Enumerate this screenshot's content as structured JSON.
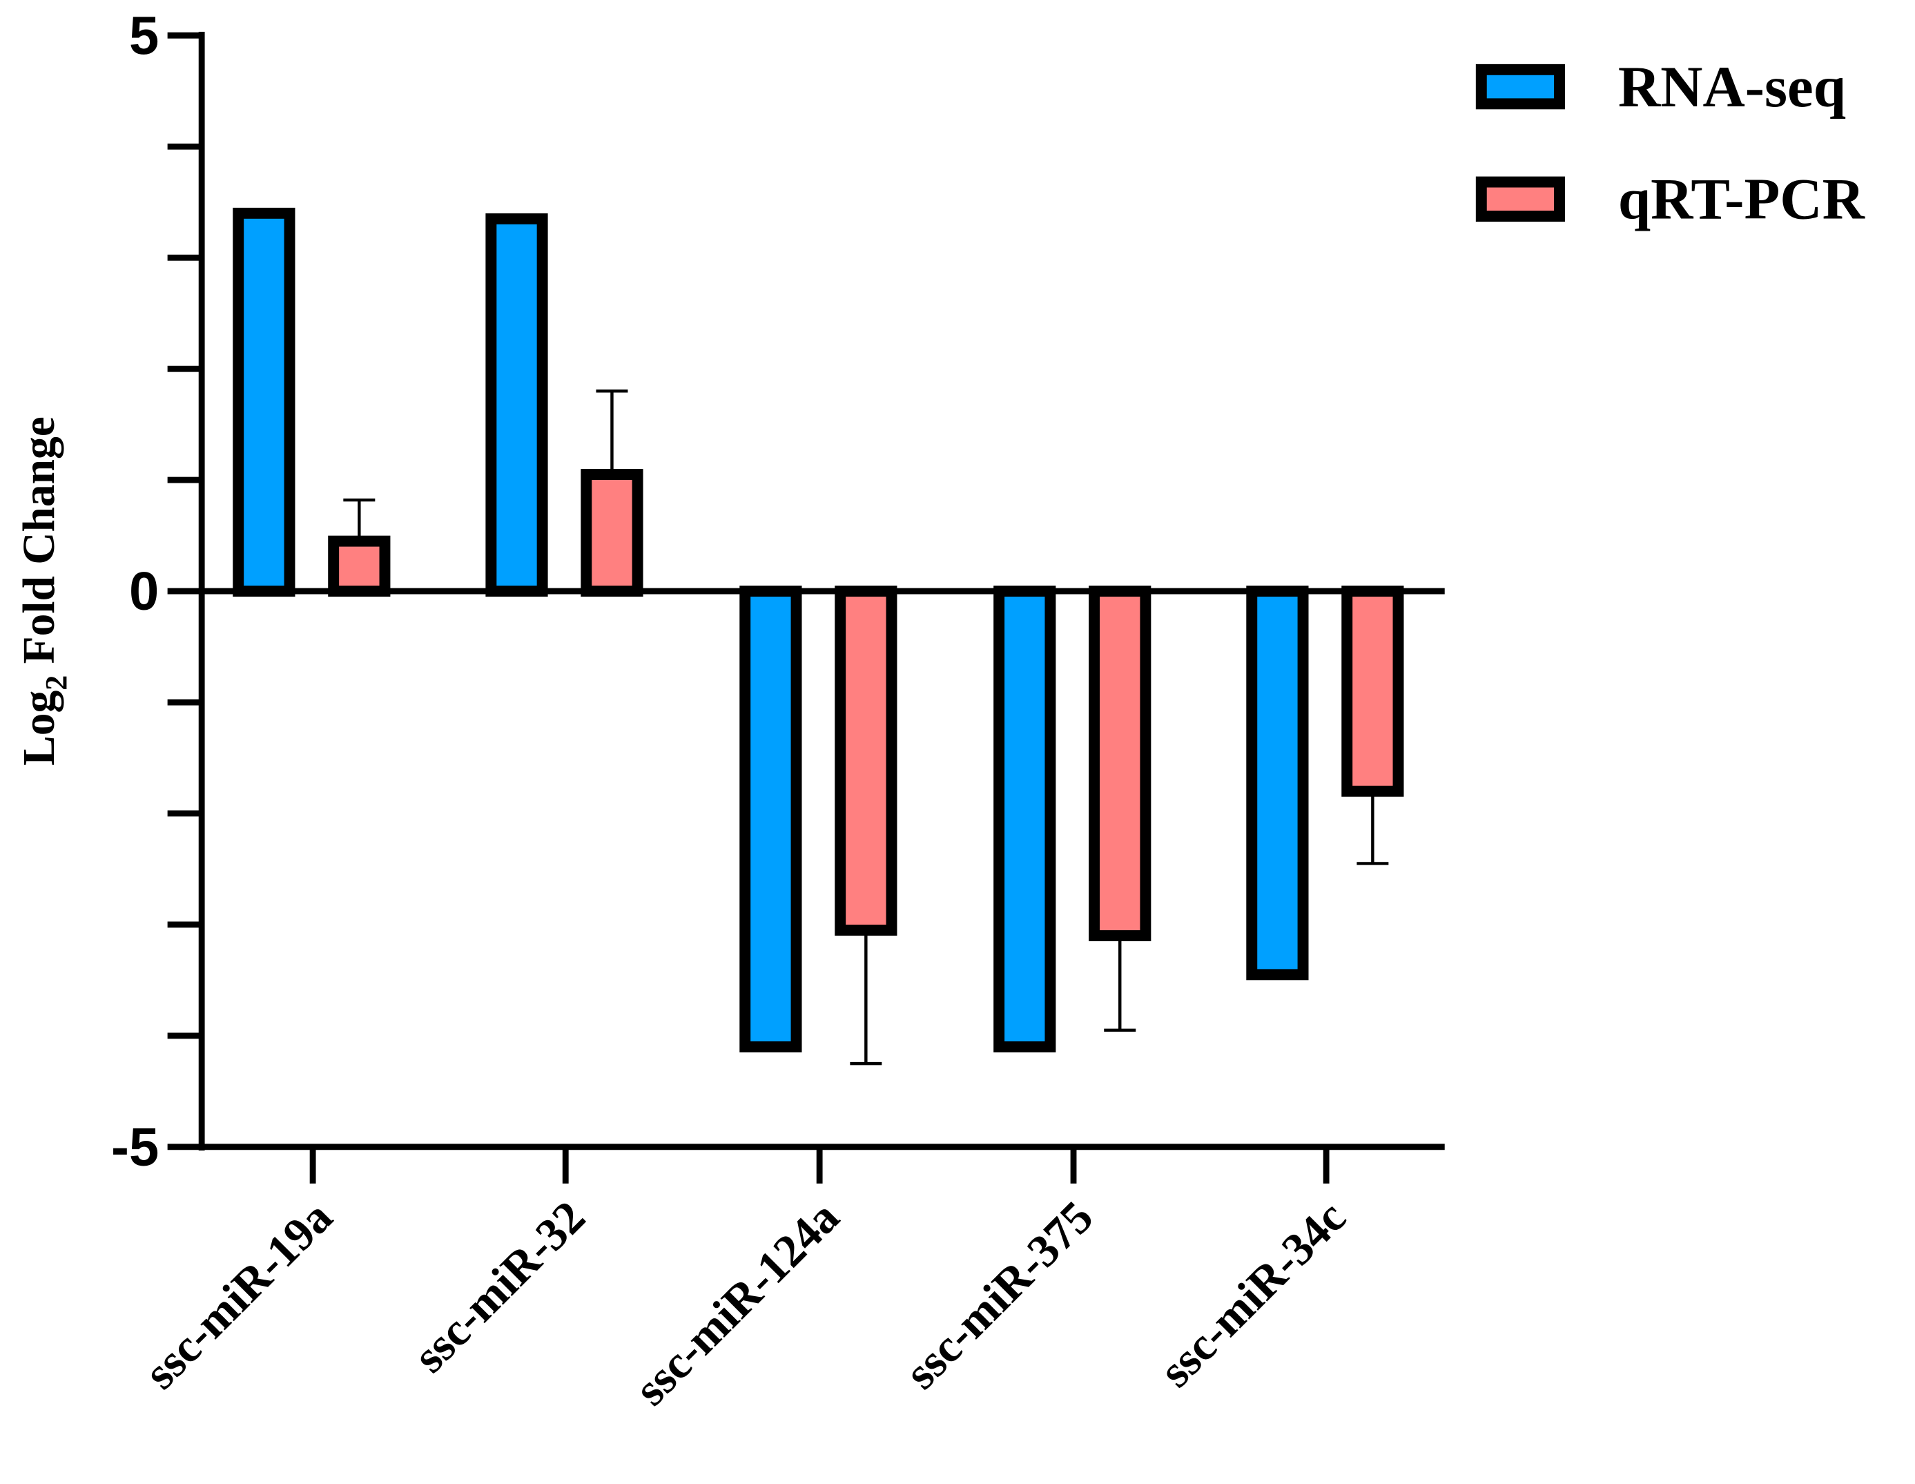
{
  "chart_data": {
    "type": "bar",
    "title": "",
    "xlabel": "",
    "ylabel": "Log2 Fold Change",
    "ylabel_parts": {
      "base": "Log",
      "subscript": "2",
      "rest": " Fold Change"
    },
    "ylim": [
      -5,
      5
    ],
    "yticks": [
      5,
      4,
      3,
      2,
      1,
      0,
      -1,
      -2,
      -3,
      -4,
      -5
    ],
    "ytick_labels": [
      "5",
      "0",
      "-5"
    ],
    "ytick_label_values": [
      5,
      0,
      -5
    ],
    "categories": [
      "ssc-miR-19a",
      "ssc-miR-32",
      "ssc-miR-124a",
      "ssc-miR-375",
      "ssc-miR-34c"
    ],
    "series": [
      {
        "name": "RNA-seq",
        "color": "#00A0FF",
        "values": [
          3.4,
          3.35,
          -4.1,
          -4.1,
          -3.45
        ]
      },
      {
        "name": "qRT-PCR",
        "color": "#FF8080",
        "values": [
          0.45,
          1.05,
          -3.05,
          -3.1,
          -1.8
        ],
        "error": [
          0.37,
          0.75,
          1.2,
          0.85,
          0.65
        ]
      }
    ],
    "legend_position": "top-right",
    "grid": false
  }
}
